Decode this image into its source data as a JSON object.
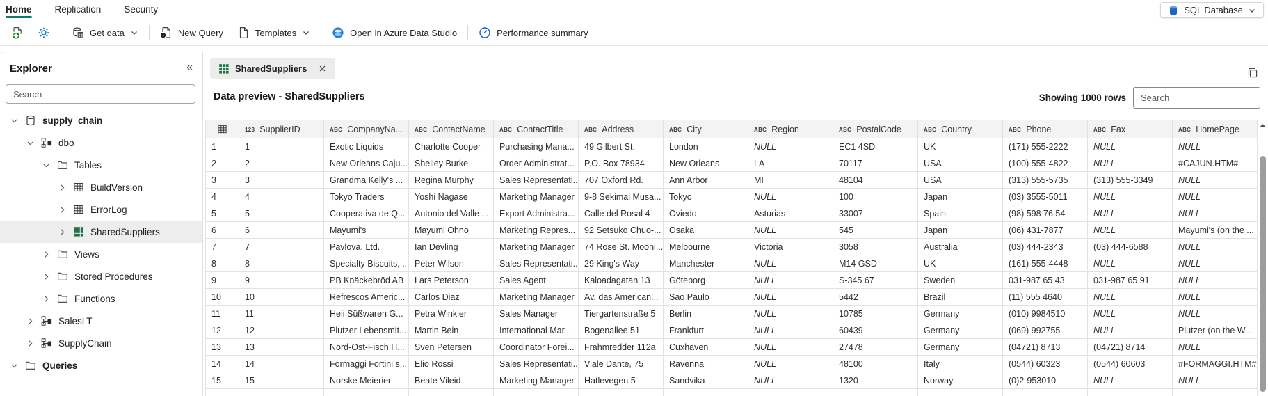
{
  "colors": {
    "accent_green": "#117865",
    "icon_blue": "#0078d4",
    "table_green": "#217346",
    "selected_row_bg": "#ededed"
  },
  "menu": {
    "tabs": [
      {
        "label": "Home",
        "active": true
      },
      {
        "label": "Replication",
        "active": false
      },
      {
        "label": "Security",
        "active": false
      }
    ],
    "environment": {
      "label": "SQL Database",
      "icon": "sql-database-icon"
    }
  },
  "toolbar": {
    "get_data_label": "Get data",
    "new_query_label": "New Query",
    "templates_label": "Templates",
    "open_ads_label": "Open in Azure Data Studio",
    "performance_label": "Performance summary"
  },
  "explorer": {
    "title": "Explorer",
    "collapse_glyph": "«",
    "search_placeholder": "Search",
    "tree": [
      {
        "label": "supply_chain",
        "level": 0,
        "icon": "database-icon",
        "expanded": true,
        "bold": true,
        "selected": false
      },
      {
        "label": "dbo",
        "level": 1,
        "icon": "schema-icon",
        "expanded": true,
        "bold": false,
        "selected": false
      },
      {
        "label": "Tables",
        "level": 2,
        "icon": "folder-icon",
        "expanded": true,
        "bold": false,
        "selected": false
      },
      {
        "label": "BuildVersion",
        "level": 3,
        "icon": "table-icon",
        "expanded": false,
        "bold": false,
        "selected": false
      },
      {
        "label": "ErrorLog",
        "level": 3,
        "icon": "table-icon",
        "expanded": false,
        "bold": false,
        "selected": false
      },
      {
        "label": "SharedSuppliers",
        "level": 3,
        "icon": "table-green-icon",
        "expanded": false,
        "bold": false,
        "selected": true
      },
      {
        "label": "Views",
        "level": 2,
        "icon": "folder-icon",
        "expanded": false,
        "bold": false,
        "selected": false
      },
      {
        "label": "Stored Procedures",
        "level": 2,
        "icon": "folder-icon",
        "expanded": false,
        "bold": false,
        "selected": false
      },
      {
        "label": "Functions",
        "level": 2,
        "icon": "folder-icon",
        "expanded": false,
        "bold": false,
        "selected": false
      },
      {
        "label": "SalesLT",
        "level": 1,
        "icon": "schema-icon",
        "expanded": false,
        "bold": false,
        "selected": false
      },
      {
        "label": "SupplyChain",
        "level": 1,
        "icon": "schema-icon",
        "expanded": false,
        "bold": false,
        "selected": false
      },
      {
        "label": "Queries",
        "level": 0,
        "icon": "folder-icon",
        "expanded": true,
        "bold": true,
        "selected": false
      }
    ]
  },
  "content": {
    "tab_label": "SharedSuppliers",
    "preview_title": "Data preview - SharedSuppliers",
    "rows_info": "Showing 1000 rows",
    "search_placeholder": "Search"
  },
  "table": {
    "columns": [
      {
        "type": "123",
        "name": "SupplierID"
      },
      {
        "type": "ABC",
        "name": "CompanyNa..."
      },
      {
        "type": "ABC",
        "name": "ContactName"
      },
      {
        "type": "ABC",
        "name": "ContactTitle"
      },
      {
        "type": "ABC",
        "name": "Address"
      },
      {
        "type": "ABC",
        "name": "City"
      },
      {
        "type": "ABC",
        "name": "Region"
      },
      {
        "type": "ABC",
        "name": "PostalCode"
      },
      {
        "type": "ABC",
        "name": "Country"
      },
      {
        "type": "ABC",
        "name": "Phone"
      },
      {
        "type": "ABC",
        "name": "Fax"
      },
      {
        "type": "ABC",
        "name": "HomePage"
      }
    ],
    "rows": [
      [
        "1",
        "1",
        "Exotic Liquids",
        "Charlotte Cooper",
        "Purchasing Mana...",
        "49 Gilbert St.",
        "London",
        "NULL",
        "EC1 4SD",
        "UK",
        "(171) 555-2222",
        "NULL",
        "NULL"
      ],
      [
        "2",
        "2",
        "New Orleans Caju...",
        "Shelley Burke",
        "Order Administrat...",
        "P.O. Box 78934",
        "New Orleans",
        "LA",
        "70117",
        "USA",
        "(100) 555-4822",
        "NULL",
        "#CAJUN.HTM#"
      ],
      [
        "3",
        "3",
        "Grandma Kelly's ...",
        "Regina Murphy",
        "Sales Representati...",
        "707 Oxford Rd.",
        "Ann Arbor",
        "MI",
        "48104",
        "USA",
        "(313) 555-5735",
        "(313) 555-3349",
        "NULL"
      ],
      [
        "4",
        "4",
        "Tokyo Traders",
        "Yoshi Nagase",
        "Marketing Manager",
        "9-8 Sekimai Musa...",
        "Tokyo",
        "NULL",
        "100",
        "Japan",
        "(03) 3555-5011",
        "NULL",
        "NULL"
      ],
      [
        "5",
        "5",
        "Cooperativa de Q...",
        "Antonio del Valle ...",
        "Export Administra...",
        "Calle del Rosal 4",
        "Oviedo",
        "Asturias",
        "33007",
        "Spain",
        "(98) 598 76 54",
        "NULL",
        "NULL"
      ],
      [
        "6",
        "6",
        "Mayumi's",
        "Mayumi Ohno",
        "Marketing Repres...",
        "92 Setsuko Chuo-...",
        "Osaka",
        "NULL",
        "545",
        "Japan",
        "(06) 431-7877",
        "NULL",
        "Mayumi's (on the ..."
      ],
      [
        "7",
        "7",
        "Pavlova, Ltd.",
        "Ian Devling",
        "Marketing Manager",
        "74 Rose St. Mooni...",
        "Melbourne",
        "Victoria",
        "3058",
        "Australia",
        "(03) 444-2343",
        "(03) 444-6588",
        "NULL"
      ],
      [
        "8",
        "8",
        "Specialty Biscuits, ...",
        "Peter Wilson",
        "Sales Representati...",
        "29 King's Way",
        "Manchester",
        "NULL",
        "M14 GSD",
        "UK",
        "(161) 555-4448",
        "NULL",
        "NULL"
      ],
      [
        "9",
        "9",
        "PB Knäckebröd AB",
        "Lars Peterson",
        "Sales Agent",
        "Kaloadagatan 13",
        "Göteborg",
        "NULL",
        "S-345 67",
        "Sweden",
        "031-987 65 43",
        "031-987 65 91",
        "NULL"
      ],
      [
        "10",
        "10",
        "Refrescos Americ...",
        "Carlos Diaz",
        "Marketing Manager",
        "Av. das American...",
        "Sao Paulo",
        "NULL",
        "5442",
        "Brazil",
        "(11) 555 4640",
        "NULL",
        "NULL"
      ],
      [
        "11",
        "11",
        "Heli Süßwaren G...",
        "Petra Winkler",
        "Sales Manager",
        "Tiergartenstraße 5",
        "Berlin",
        "NULL",
        "10785",
        "Germany",
        "(010) 9984510",
        "NULL",
        "NULL"
      ],
      [
        "12",
        "12",
        "Plutzer Lebensmit...",
        "Martin Bein",
        "International Mar...",
        "Bogenallee 51",
        "Frankfurt",
        "NULL",
        "60439",
        "Germany",
        "(069) 992755",
        "NULL",
        "Plutzer (on the W..."
      ],
      [
        "13",
        "13",
        "Nord-Ost-Fisch H...",
        "Sven Petersen",
        "Coordinator Forei...",
        "Frahmredder 112a",
        "Cuxhaven",
        "NULL",
        "27478",
        "Germany",
        "(04721) 8713",
        "(04721) 8714",
        "NULL"
      ],
      [
        "14",
        "14",
        "Formaggi Fortini s...",
        "Elio Rossi",
        "Sales Representati...",
        "Viale Dante, 75",
        "Ravenna",
        "NULL",
        "48100",
        "Italy",
        "(0544) 60323",
        "(0544) 60603",
        "#FORMAGGI.HTM#"
      ],
      [
        "15",
        "15",
        "Norske Meierier",
        "Beate Vileid",
        "Marketing Manager",
        "Hatlevegen 5",
        "Sandvika",
        "NULL",
        "1320",
        "Norway",
        "(0)2-953010",
        "NULL",
        "NULL"
      ]
    ]
  }
}
